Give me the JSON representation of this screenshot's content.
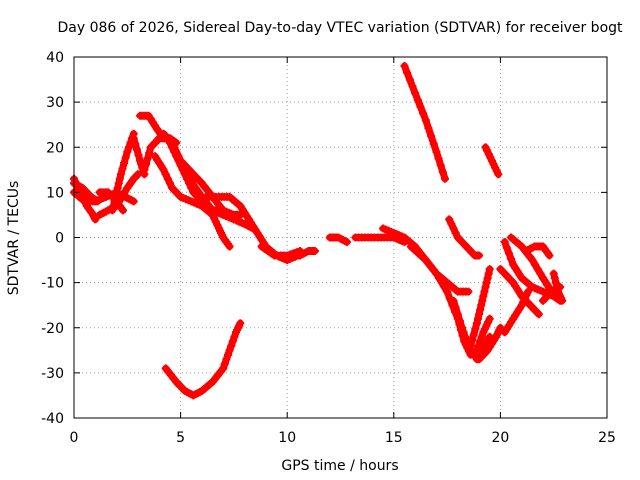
{
  "chart_data": {
    "type": "scatter",
    "title": "Day 086 of 2026, Sidereal Day-to-day VTEC variation (SDTVAR) for receiver bogt",
    "xlabel": "GPS time / hours",
    "ylabel": "SDTVAR / TECUs",
    "xlim": [
      0,
      25
    ],
    "ylim": [
      -40,
      40
    ],
    "xticks": [
      0,
      5,
      10,
      15,
      20,
      25
    ],
    "yticks": [
      -40,
      -30,
      -20,
      -10,
      0,
      10,
      20,
      30,
      40
    ],
    "grid": true,
    "marker": "+",
    "color": "#ff0000",
    "series": [
      {
        "name": "arc-1",
        "points": [
          [
            0.0,
            13
          ],
          [
            0.3,
            10
          ],
          [
            0.6,
            7
          ],
          [
            0.9,
            5
          ],
          [
            1.0,
            4
          ]
        ]
      },
      {
        "name": "arc-2",
        "points": [
          [
            0.0,
            12
          ],
          [
            0.4,
            11
          ],
          [
            0.8,
            9
          ],
          [
            1.1,
            8
          ]
        ]
      },
      {
        "name": "arc-3",
        "points": [
          [
            0.0,
            10
          ],
          [
            0.5,
            8
          ],
          [
            1.0,
            8
          ],
          [
            1.5,
            9
          ],
          [
            2.0,
            10
          ],
          [
            2.4,
            9
          ],
          [
            2.8,
            8
          ]
        ]
      },
      {
        "name": "arc-4",
        "points": [
          [
            1.2,
            10
          ],
          [
            1.6,
            10
          ],
          [
            2.0,
            8
          ],
          [
            2.3,
            6
          ]
        ]
      },
      {
        "name": "arc-5",
        "points": [
          [
            1.2,
            5
          ],
          [
            1.6,
            6
          ],
          [
            2.0,
            7
          ],
          [
            2.5,
            11
          ],
          [
            2.8,
            13
          ],
          [
            3.0,
            14
          ]
        ]
      },
      {
        "name": "arc-6",
        "points": [
          [
            1.8,
            6
          ],
          [
            2.0,
            10
          ],
          [
            2.2,
            14
          ],
          [
            2.5,
            19
          ],
          [
            2.8,
            23
          ]
        ]
      },
      {
        "name": "arc-7",
        "points": [
          [
            3.1,
            27
          ],
          [
            3.5,
            27
          ],
          [
            3.9,
            24
          ],
          [
            4.2,
            22
          ],
          [
            4.5,
            22
          ],
          [
            4.8,
            21
          ]
        ]
      },
      {
        "name": "arc-8",
        "points": [
          [
            2.8,
            22
          ],
          [
            3.1,
            17
          ],
          [
            3.3,
            14
          ]
        ]
      },
      {
        "name": "arc-9",
        "points": [
          [
            3.3,
            15
          ],
          [
            3.6,
            20
          ],
          [
            4.0,
            22
          ],
          [
            4.4,
            22
          ],
          [
            4.8,
            18
          ],
          [
            5.2,
            14
          ],
          [
            5.6,
            10
          ],
          [
            6.0,
            8
          ],
          [
            6.5,
            6
          ],
          [
            7.0,
            6
          ],
          [
            7.5,
            5
          ],
          [
            7.8,
            5
          ]
        ]
      },
      {
        "name": "arc-10",
        "points": [
          [
            4.2,
            23
          ],
          [
            4.6,
            21
          ],
          [
            5.0,
            17
          ],
          [
            5.4,
            15
          ],
          [
            6.0,
            12
          ],
          [
            6.5,
            9
          ],
          [
            7.0,
            6
          ],
          [
            7.5,
            4
          ],
          [
            8.0,
            3
          ],
          [
            8.4,
            2
          ]
        ]
      },
      {
        "name": "arc-11",
        "points": [
          [
            3.8,
            18
          ],
          [
            4.2,
            15
          ],
          [
            4.6,
            11
          ],
          [
            5.0,
            9
          ],
          [
            5.5,
            8
          ],
          [
            6.0,
            7
          ],
          [
            6.5,
            5
          ],
          [
            6.8,
            2
          ],
          [
            7.0,
            0
          ],
          [
            7.3,
            -2
          ]
        ]
      },
      {
        "name": "arc-12",
        "points": [
          [
            5.4,
            13
          ],
          [
            6.0,
            9
          ],
          [
            6.5,
            6
          ],
          [
            7.0,
            5
          ],
          [
            7.5,
            4
          ],
          [
            7.8,
            5
          ]
        ]
      },
      {
        "name": "arc-13",
        "points": [
          [
            6.2,
            9
          ],
          [
            6.8,
            9
          ],
          [
            7.3,
            9
          ],
          [
            7.8,
            7
          ],
          [
            8.2,
            4
          ],
          [
            8.6,
            1
          ],
          [
            9.0,
            -2
          ],
          [
            9.5,
            -4
          ],
          [
            10.0,
            -5
          ],
          [
            10.5,
            -4
          ]
        ]
      },
      {
        "name": "arc-14",
        "points": [
          [
            8.8,
            -2
          ],
          [
            9.4,
            -4
          ],
          [
            10.0,
            -4
          ],
          [
            10.6,
            -3
          ]
        ]
      },
      {
        "name": "arc-15",
        "points": [
          [
            10.6,
            -4
          ],
          [
            11.0,
            -3
          ],
          [
            11.3,
            -3
          ]
        ]
      },
      {
        "name": "arc-16",
        "points": [
          [
            12.0,
            0
          ],
          [
            12.4,
            0
          ],
          [
            12.8,
            -1
          ]
        ]
      },
      {
        "name": "arc-17",
        "points": [
          [
            13.2,
            0
          ],
          [
            13.8,
            0
          ],
          [
            14.4,
            0
          ],
          [
            15.0,
            0
          ],
          [
            15.5,
            -1
          ]
        ]
      },
      {
        "name": "arc-18",
        "points": [
          [
            14.5,
            2
          ],
          [
            15.0,
            1
          ],
          [
            15.5,
            0
          ],
          [
            16.0,
            -2
          ],
          [
            16.5,
            -5
          ],
          [
            17.0,
            -8
          ],
          [
            17.5,
            -10
          ],
          [
            18.0,
            -12
          ],
          [
            18.5,
            -12
          ]
        ]
      },
      {
        "name": "arc-19",
        "points": [
          [
            15.8,
            -2
          ],
          [
            16.5,
            -5
          ],
          [
            17.0,
            -8
          ],
          [
            17.5,
            -12
          ],
          [
            18.0,
            -18
          ],
          [
            18.3,
            -23
          ],
          [
            18.6,
            -26
          ],
          [
            18.9,
            -25
          ],
          [
            19.2,
            -21
          ],
          [
            19.5,
            -18
          ]
        ]
      },
      {
        "name": "arc-20",
        "points": [
          [
            17.8,
            -14
          ],
          [
            18.2,
            -20
          ],
          [
            18.5,
            -24
          ],
          [
            18.9,
            -27
          ],
          [
            19.2,
            -25
          ],
          [
            19.5,
            -22
          ]
        ]
      },
      {
        "name": "arc-21",
        "points": [
          [
            18.6,
            -24
          ],
          [
            18.9,
            -19
          ],
          [
            19.1,
            -15
          ],
          [
            19.3,
            -11
          ],
          [
            19.5,
            -7
          ]
        ]
      },
      {
        "name": "arc-22",
        "points": [
          [
            19.0,
            -27
          ],
          [
            19.4,
            -25
          ],
          [
            19.8,
            -22
          ],
          [
            20.0,
            -20
          ]
        ]
      },
      {
        "name": "arc-23",
        "points": [
          [
            17.6,
            4
          ],
          [
            18.0,
            0
          ],
          [
            18.4,
            -2
          ],
          [
            18.8,
            -4
          ],
          [
            19.0,
            -4
          ]
        ]
      },
      {
        "name": "arc-24",
        "points": [
          [
            15.5,
            38
          ],
          [
            16.0,
            32
          ],
          [
            16.5,
            26
          ],
          [
            17.0,
            19
          ],
          [
            17.4,
            13
          ]
        ]
      },
      {
        "name": "arc-25",
        "points": [
          [
            19.3,
            20
          ],
          [
            19.6,
            17
          ],
          [
            19.9,
            14
          ]
        ]
      },
      {
        "name": "arc-26",
        "points": [
          [
            20.2,
            -1
          ],
          [
            20.6,
            -6
          ],
          [
            21.0,
            -9
          ],
          [
            21.5,
            -11
          ],
          [
            22.0,
            -12
          ],
          [
            22.5,
            -13
          ],
          [
            22.8,
            -14
          ]
        ]
      },
      {
        "name": "arc-27",
        "points": [
          [
            20.5,
            0
          ],
          [
            21.0,
            -2
          ],
          [
            21.5,
            -5
          ],
          [
            22.0,
            -9
          ],
          [
            22.4,
            -12
          ]
        ]
      },
      {
        "name": "arc-28",
        "points": [
          [
            20.0,
            -7
          ],
          [
            20.6,
            -10
          ],
          [
            21.0,
            -13
          ],
          [
            21.4,
            -15
          ],
          [
            21.8,
            -17
          ]
        ]
      },
      {
        "name": "arc-29",
        "points": [
          [
            20.2,
            -21
          ],
          [
            20.6,
            -18
          ],
          [
            21.0,
            -15
          ],
          [
            21.3,
            -12
          ]
        ]
      },
      {
        "name": "arc-30",
        "points": [
          [
            21.2,
            -3
          ],
          [
            21.6,
            -2
          ],
          [
            22.0,
            -2
          ],
          [
            22.3,
            -4
          ]
        ]
      },
      {
        "name": "arc-31",
        "points": [
          [
            22.0,
            -14
          ],
          [
            22.4,
            -12
          ],
          [
            22.8,
            -11
          ]
        ]
      },
      {
        "name": "arc-32",
        "points": [
          [
            22.5,
            -8
          ],
          [
            22.7,
            -12
          ],
          [
            22.9,
            -14
          ]
        ]
      },
      {
        "name": "arc-33",
        "points": [
          [
            4.3,
            -29
          ],
          [
            4.8,
            -32
          ],
          [
            5.2,
            -34
          ],
          [
            5.6,
            -35
          ],
          [
            6.0,
            -34
          ],
          [
            6.5,
            -32
          ],
          [
            7.0,
            -29
          ],
          [
            7.3,
            -25
          ],
          [
            7.6,
            -21
          ],
          [
            7.8,
            -19
          ]
        ]
      }
    ]
  }
}
